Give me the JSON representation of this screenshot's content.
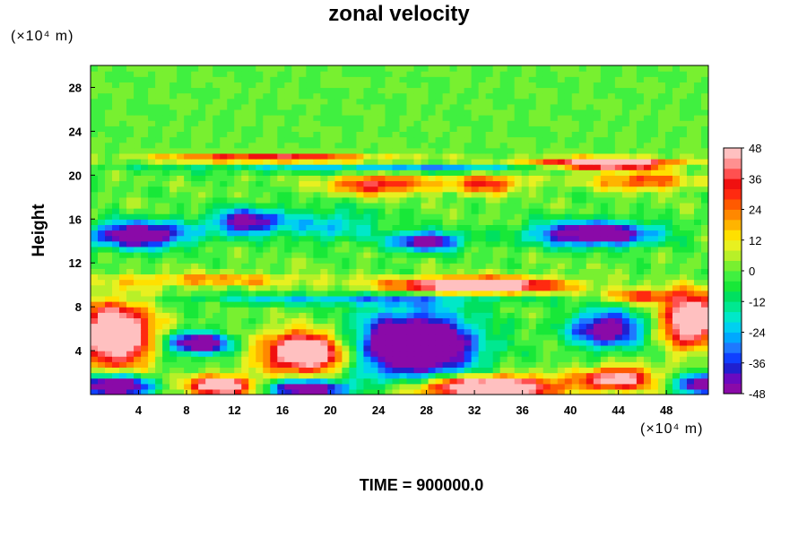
{
  "chart_data": {
    "type": "heatmap",
    "title": "zonal velocity",
    "ylabel": "Height",
    "x_unit": "(×10⁴ m)",
    "y_unit": "(×10⁴ m)",
    "xlim": [
      0,
      51.5
    ],
    "ylim": [
      0,
      30
    ],
    "x_ticks": [
      "4",
      "8",
      "12",
      "16",
      "20",
      "24",
      "28",
      "32",
      "36",
      "40",
      "44",
      "48"
    ],
    "y_ticks": [
      "4",
      "8",
      "12",
      "16",
      "20",
      "24",
      "28"
    ],
    "colorbar": {
      "min": -48,
      "max": 48,
      "step": 4,
      "labels": [
        "48",
        "36",
        "24",
        "12",
        "0",
        "-12",
        "-24",
        "-36",
        "-48"
      ],
      "colormap": "rainbow (purple → blue → cyan → green → yellow → red → pink)"
    },
    "annotation": "TIME = 900000.0",
    "features_description": [
      {
        "region": "upper layer y≈22–30",
        "value": "≈0 (green)"
      },
      {
        "region": "strong jet near y≈21",
        "value": "+48 (pink) east of x≈36"
      },
      {
        "region": "band near y≈15",
        "value": "≈-48 (purple)"
      },
      {
        "region": "layer y≈9–11",
        "value": "+40 to +48 near x≈28–40"
      },
      {
        "region": "lower cells y≈0–8",
        "value": "alternating ±48"
      }
    ]
  },
  "time_label": "TIME = 900000.0"
}
